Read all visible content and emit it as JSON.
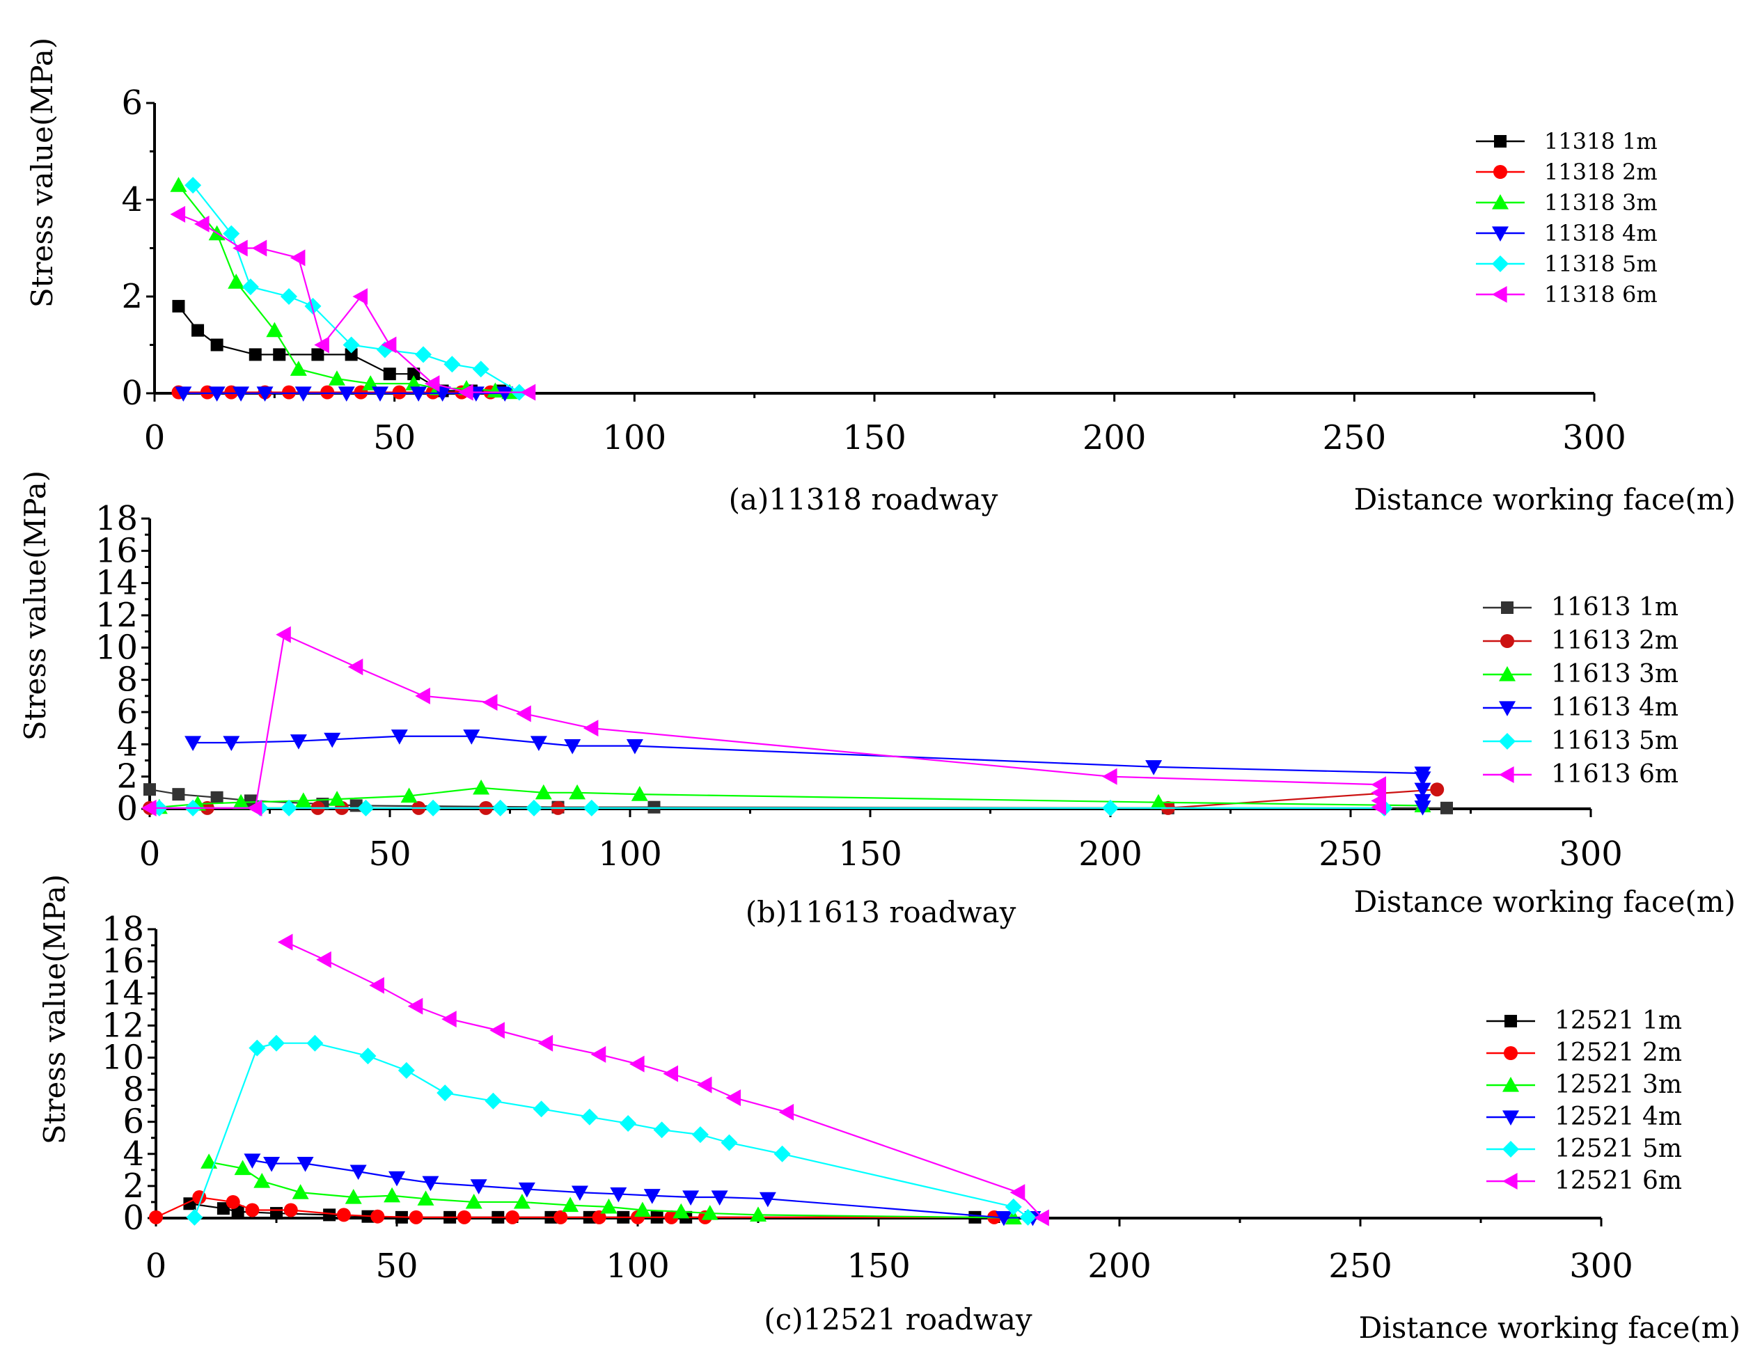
{
  "chart_data": [
    {
      "type": "line",
      "caption": "(a)11318 roadway",
      "xlabel": "Distance working face(m)",
      "ylabel": "Stress value(MPa)",
      "xlim": [
        0,
        300
      ],
      "ylim": [
        0,
        6
      ],
      "x_ticks": [
        "0",
        "50",
        "100",
        "150",
        "200",
        "250",
        "300"
      ],
      "y_ticks": [
        "0",
        "2",
        "4",
        "6"
      ],
      "y_tick_values": [
        0,
        2,
        4,
        6
      ],
      "series": [
        {
          "name": "11318 1m",
          "color": "#000000",
          "marker": "square",
          "points": [
            [
              5,
              1.8
            ],
            [
              9,
              1.3
            ],
            [
              13,
              1.0
            ],
            [
              21,
              0.8
            ],
            [
              26,
              0.8
            ],
            [
              34,
              0.8
            ],
            [
              41,
              0.8
            ],
            [
              49,
              0.4
            ],
            [
              54,
              0.4
            ],
            [
              60,
              0.05
            ],
            [
              66,
              0.05
            ],
            [
              72,
              0.05
            ]
          ]
        },
        {
          "name": "11318 2m",
          "color": "#ff0000",
          "marker": "circle",
          "points": [
            [
              5,
              0.02
            ],
            [
              11,
              0.02
            ],
            [
              16,
              0.02
            ],
            [
              23,
              0.02
            ],
            [
              28,
              0.02
            ],
            [
              36,
              0.02
            ],
            [
              43,
              0.02
            ],
            [
              51,
              0.02
            ],
            [
              58,
              0.02
            ],
            [
              64,
              0.02
            ],
            [
              70,
              0.02
            ]
          ]
        },
        {
          "name": "11318 3m",
          "color": "#00ff00",
          "marker": "triangle-up",
          "points": [
            [
              5,
              4.3
            ],
            [
              13,
              3.3
            ],
            [
              17,
              2.3
            ],
            [
              25,
              1.3
            ],
            [
              30,
              0.5
            ],
            [
              38,
              0.3
            ],
            [
              45,
              0.2
            ],
            [
              54,
              0.2
            ],
            [
              59,
              0.1
            ],
            [
              65,
              0.1
            ],
            [
              71,
              0.05
            ],
            [
              74,
              0.02
            ]
          ]
        },
        {
          "name": "11318 4m",
          "color": "#0000ff",
          "marker": "triangle-down",
          "points": [
            [
              6,
              0.0
            ],
            [
              13,
              0.0
            ],
            [
              18,
              0.0
            ],
            [
              23,
              0.0
            ],
            [
              31,
              0.0
            ],
            [
              40,
              0.0
            ],
            [
              47,
              0.0
            ],
            [
              55,
              0.0
            ],
            [
              60,
              0.0
            ],
            [
              67,
              0.0
            ],
            [
              73,
              0.0
            ]
          ]
        },
        {
          "name": "11318 5m",
          "color": "#00ffff",
          "marker": "diamond",
          "points": [
            [
              8,
              4.3
            ],
            [
              16,
              3.3
            ],
            [
              20,
              2.2
            ],
            [
              28,
              2.0
            ],
            [
              33,
              1.8
            ],
            [
              41,
              1.0
            ],
            [
              48,
              0.9
            ],
            [
              56,
              0.8
            ],
            [
              62,
              0.6
            ],
            [
              68,
              0.5
            ],
            [
              76,
              0.02
            ]
          ]
        },
        {
          "name": "11318 6m",
          "color": "#ff00ff",
          "marker": "triangle-left",
          "points": [
            [
              5,
              3.7
            ],
            [
              10,
              3.5
            ],
            [
              18,
              3.0
            ],
            [
              22,
              3.0
            ],
            [
              30,
              2.8
            ],
            [
              35,
              1.0
            ],
            [
              43,
              2.0
            ],
            [
              49,
              1.0
            ],
            [
              58,
              0.2
            ],
            [
              65,
              0.02
            ],
            [
              78,
              0.02
            ]
          ]
        }
      ]
    },
    {
      "type": "line",
      "caption": "(b)11613 roadway",
      "xlabel": "Distance working face(m)",
      "ylabel": "Stress value(MPa)",
      "xlim": [
        0,
        300
      ],
      "ylim": [
        0,
        18
      ],
      "x_ticks": [
        "0",
        "50",
        "100",
        "150",
        "200",
        "250",
        "300"
      ],
      "y_ticks": [
        "0",
        "2",
        "4",
        "6",
        "8",
        "10",
        "12",
        "14",
        "16",
        "18"
      ],
      "y_tick_values": [
        0,
        2,
        4,
        6,
        8,
        10,
        12,
        14,
        16,
        18
      ],
      "series": [
        {
          "name": "11613 1m",
          "color": "#333333",
          "marker": "square",
          "points": [
            [
              0,
              1.2
            ],
            [
              6,
              0.9
            ],
            [
              14,
              0.7
            ],
            [
              21,
              0.5
            ],
            [
              36,
              0.3
            ],
            [
              43,
              0.2
            ],
            [
              85,
              0.1
            ],
            [
              105,
              0.1
            ],
            [
              212,
              0.05
            ],
            [
              270,
              0.05
            ]
          ]
        },
        {
          "name": "11613 2m",
          "color": "#cc1111",
          "marker": "circle",
          "points": [
            [
              0,
              0.05
            ],
            [
              12,
              0.05
            ],
            [
              35,
              0.05
            ],
            [
              40,
              0.05
            ],
            [
              56,
              0.05
            ],
            [
              70,
              0.05
            ],
            [
              85,
              0.05
            ],
            [
              212,
              0.05
            ],
            [
              268,
              1.2
            ]
          ]
        },
        {
          "name": "11613 3m",
          "color": "#00ff00",
          "marker": "triangle-up",
          "points": [
            [
              2,
              0.1
            ],
            [
              10,
              0.3
            ],
            [
              19,
              0.4
            ],
            [
              32,
              0.5
            ],
            [
              39,
              0.6
            ],
            [
              54,
              0.8
            ],
            [
              69,
              1.3
            ],
            [
              82,
              1.0
            ],
            [
              89,
              1.0
            ],
            [
              102,
              0.9
            ],
            [
              210,
              0.4
            ],
            [
              265,
              0.2
            ]
          ]
        },
        {
          "name": "11613 4m",
          "color": "#0000ff",
          "marker": "triangle-down",
          "points": [
            [
              9,
              4.1
            ],
            [
              17,
              4.1
            ],
            [
              31,
              4.2
            ],
            [
              38,
              4.3
            ],
            [
              52,
              4.5
            ],
            [
              67,
              4.5
            ],
            [
              81,
              4.1
            ],
            [
              88,
              3.9
            ],
            [
              101,
              3.9
            ],
            [
              209,
              2.6
            ],
            [
              265,
              2.2
            ],
            [
              265,
              1.9
            ],
            [
              265,
              1.2
            ],
            [
              265,
              0.5
            ],
            [
              265,
              0.1
            ]
          ]
        },
        {
          "name": "11613 5m",
          "color": "#00ffff",
          "marker": "diamond",
          "points": [
            [
              2,
              0.05
            ],
            [
              9,
              0.05
            ],
            [
              23,
              0.05
            ],
            [
              29,
              0.05
            ],
            [
              45,
              0.05
            ],
            [
              59,
              0.05
            ],
            [
              73,
              0.05
            ],
            [
              80,
              0.05
            ],
            [
              92,
              0.05
            ],
            [
              200,
              0.05
            ],
            [
              257,
              0.05
            ]
          ]
        },
        {
          "name": "11613 6m",
          "color": "#ff00ff",
          "marker": "triangle-left",
          "points": [
            [
              0,
              0.05
            ],
            [
              22,
              0.05
            ],
            [
              28,
              10.8
            ],
            [
              43,
              8.8
            ],
            [
              57,
              7.0
            ],
            [
              71,
              6.6
            ],
            [
              78,
              5.9
            ],
            [
              92,
              5.0
            ],
            [
              200,
              2.0
            ],
            [
              256,
              1.5
            ],
            [
              256,
              1.0
            ],
            [
              256,
              0.5
            ],
            [
              256,
              0.1
            ]
          ]
        }
      ]
    },
    {
      "type": "line",
      "caption": "(c)12521 roadway",
      "xlabel": "Distance working face(m)",
      "ylabel": "Stress value(MPa)",
      "xlim": [
        0,
        300
      ],
      "ylim": [
        0,
        18
      ],
      "x_ticks": [
        "0",
        "50",
        "100",
        "150",
        "200",
        "250",
        "300"
      ],
      "y_ticks": [
        "0",
        "2",
        "4",
        "6",
        "8",
        "10",
        "12",
        "14",
        "16",
        "18"
      ],
      "y_tick_values": [
        0,
        2,
        4,
        6,
        8,
        10,
        12,
        14,
        16,
        18
      ],
      "series": [
        {
          "name": "12521 1m",
          "color": "#000000",
          "marker": "square",
          "points": [
            [
              7,
              0.9
            ],
            [
              14,
              0.6
            ],
            [
              17,
              0.4
            ],
            [
              25,
              0.3
            ],
            [
              36,
              0.2
            ],
            [
              44,
              0.1
            ],
            [
              51,
              0.05
            ],
            [
              61,
              0.05
            ],
            [
              71,
              0.05
            ],
            [
              82,
              0.05
            ],
            [
              90,
              0.05
            ],
            [
              97,
              0.05
            ],
            [
              104,
              0.05
            ],
            [
              110,
              0.05
            ],
            [
              170,
              0.05
            ]
          ]
        },
        {
          "name": "12521 2m",
          "color": "#ff0000",
          "marker": "circle",
          "points": [
            [
              0,
              0.05
            ],
            [
              9,
              1.3
            ],
            [
              16,
              1.0
            ],
            [
              20,
              0.5
            ],
            [
              28,
              0.5
            ],
            [
              39,
              0.2
            ],
            [
              46,
              0.1
            ],
            [
              54,
              0.05
            ],
            [
              64,
              0.05
            ],
            [
              74,
              0.05
            ],
            [
              84,
              0.05
            ],
            [
              92,
              0.05
            ],
            [
              100,
              0.05
            ],
            [
              107,
              0.05
            ],
            [
              114,
              0.05
            ],
            [
              174,
              0.05
            ]
          ]
        },
        {
          "name": "12521 3m",
          "color": "#00ff00",
          "marker": "triangle-up",
          "points": [
            [
              11,
              3.5
            ],
            [
              18,
              3.1
            ],
            [
              22,
              2.3
            ],
            [
              30,
              1.6
            ],
            [
              41,
              1.3
            ],
            [
              49,
              1.4
            ],
            [
              56,
              1.2
            ],
            [
              66,
              1.0
            ],
            [
              76,
              1.0
            ],
            [
              86,
              0.8
            ],
            [
              94,
              0.7
            ],
            [
              101,
              0.5
            ],
            [
              109,
              0.4
            ],
            [
              115,
              0.3
            ],
            [
              125,
              0.2
            ],
            [
              178,
              0.02
            ]
          ]
        },
        {
          "name": "12521 4m",
          "color": "#0000ff",
          "marker": "triangle-down",
          "points": [
            [
              20,
              3.6
            ],
            [
              24,
              3.4
            ],
            [
              31,
              3.4
            ],
            [
              42,
              2.9
            ],
            [
              50,
              2.5
            ],
            [
              57,
              2.2
            ],
            [
              67,
              2.0
            ],
            [
              77,
              1.8
            ],
            [
              88,
              1.6
            ],
            [
              96,
              1.5
            ],
            [
              103,
              1.4
            ],
            [
              111,
              1.3
            ],
            [
              117,
              1.3
            ],
            [
              127,
              1.2
            ],
            [
              176,
              0.02
            ],
            [
              182,
              0.02
            ]
          ]
        },
        {
          "name": "12521 5m",
          "color": "#00ffff",
          "marker": "diamond",
          "points": [
            [
              8,
              0.05
            ],
            [
              21,
              10.6
            ],
            [
              25,
              10.9
            ],
            [
              33,
              10.9
            ],
            [
              44,
              10.1
            ],
            [
              52,
              9.2
            ],
            [
              60,
              7.8
            ],
            [
              70,
              7.3
            ],
            [
              80,
              6.8
            ],
            [
              90,
              6.3
            ],
            [
              98,
              5.9
            ],
            [
              105,
              5.5
            ],
            [
              113,
              5.2
            ],
            [
              119,
              4.7
            ],
            [
              130,
              4.0
            ],
            [
              178,
              0.7
            ],
            [
              181,
              0.05
            ]
          ]
        },
        {
          "name": "12521 6m",
          "color": "#ff00ff",
          "marker": "triangle-left",
          "points": [
            [
              27,
              17.2
            ],
            [
              35,
              16.1
            ],
            [
              46,
              14.5
            ],
            [
              54,
              13.2
            ],
            [
              61,
              12.4
            ],
            [
              71,
              11.7
            ],
            [
              81,
              10.9
            ],
            [
              92,
              10.2
            ],
            [
              100,
              9.6
            ],
            [
              107,
              9.0
            ],
            [
              114,
              8.3
            ],
            [
              120,
              7.5
            ],
            [
              131,
              6.6
            ],
            [
              179,
              1.6
            ],
            [
              184,
              0.02
            ]
          ]
        }
      ]
    }
  ]
}
